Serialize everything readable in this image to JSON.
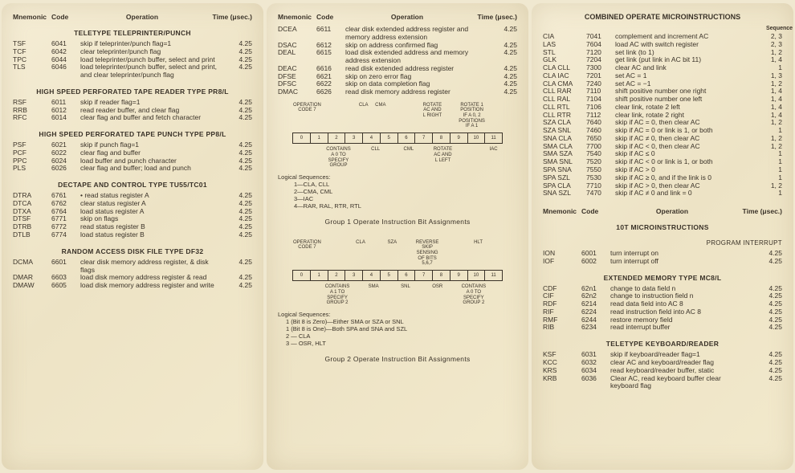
{
  "headers": {
    "mnemonic": "Mnemonic",
    "code": "Code",
    "operation": "Operation",
    "time": "Time (μsec.)",
    "sequence": "Sequence"
  },
  "p1": {
    "sec1": {
      "title": "TELETYPE TELEPRINTER/PUNCH",
      "rows": [
        {
          "m": "TSF",
          "c": "6041",
          "o": "skip if teleprinter/punch flag=1",
          "t": "4.25"
        },
        {
          "m": "TCF",
          "c": "6042",
          "o": "clear teleprinter/punch flag",
          "t": "4.25"
        },
        {
          "m": "TPC",
          "c": "6044",
          "o": "load teleprinter/punch buffer, select and print",
          "t": "4.25"
        },
        {
          "m": "TLS",
          "c": "6046",
          "o": "load teleprinter/punch buffer, select and print, and clear teleprinter/punch flag",
          "t": "4.25"
        }
      ]
    },
    "sec2": {
      "title": "HIGH SPEED PERFORATED TAPE READER TYPE PR8/L",
      "rows": [
        {
          "m": "RSF",
          "c": "6011",
          "o": "skip if reader flag=1",
          "t": "4.25"
        },
        {
          "m": "RRB",
          "c": "6012",
          "o": "read reader buffer, and clear flag",
          "t": "4.25"
        },
        {
          "m": "RFC",
          "c": "6014",
          "o": "clear flag and buffer and fetch character",
          "t": "4.25"
        }
      ]
    },
    "sec3": {
      "title": "HIGH SPEED PERFORATED TAPE PUNCH TYPE PP8/L",
      "rows": [
        {
          "m": "PSF",
          "c": "6021",
          "o": "skip if punch flag=1",
          "t": "4.25"
        },
        {
          "m": "PCF",
          "c": "6022",
          "o": "clear flag and buffer",
          "t": "4.25"
        },
        {
          "m": "PPC",
          "c": "6024",
          "o": "load buffer and punch character",
          "t": "4.25"
        },
        {
          "m": "PLS",
          "c": "6026",
          "o": "clear flag and buffer; load and punch",
          "t": "4.25"
        }
      ]
    },
    "sec4": {
      "title": "DECTAPE AND CONTROL TYPE TU55/TC01",
      "rows": [
        {
          "m": "DTRA",
          "c": "6761",
          "o": "• read status register A",
          "t": "4.25"
        },
        {
          "m": "DTCA",
          "c": "6762",
          "o": "clear status register A",
          "t": "4.25"
        },
        {
          "m": "DTXA",
          "c": "6764",
          "o": "load status register A",
          "t": "4.25"
        },
        {
          "m": "DTSF",
          "c": "6771",
          "o": "skip on flags",
          "t": "4.25"
        },
        {
          "m": "DTRB",
          "c": "6772",
          "o": "read status register B",
          "t": "4.25"
        },
        {
          "m": "DTLB",
          "c": "6774",
          "o": "load status register B",
          "t": "4.25"
        }
      ]
    },
    "sec5": {
      "title": "RANDOM ACCESS DISK FILE TYPE DF32",
      "rows": [
        {
          "m": "DCMA",
          "c": "6601",
          "o": "clear disk memory address register, & disk flags",
          "t": "4.25"
        },
        {
          "m": "DMAR",
          "c": "6603",
          "o": "load disk memory address register & read",
          "t": "4.25"
        },
        {
          "m": "DMAW",
          "c": "6605",
          "o": "load disk memory address register and write",
          "t": "4.25"
        }
      ]
    }
  },
  "p2": {
    "sec1": {
      "rows": [
        {
          "m": "DCEA",
          "c": "6611",
          "o": "clear disk extended address register and memory address extension",
          "t": "4.25"
        },
        {
          "m": "DSAC",
          "c": "6612",
          "o": "skip on address confirmed flag",
          "t": "4.25"
        },
        {
          "m": "DEAL",
          "c": "6615",
          "o": "load disk extended address and memory address extension",
          "t": "4.25"
        },
        {
          "m": "DEAC",
          "c": "6616",
          "o": "read disk extended address register",
          "t": "4.25"
        },
        {
          "m": "DFSE",
          "c": "6621",
          "o": "skip on zero error flag",
          "t": "4.25"
        },
        {
          "m": "DFSC",
          "c": "6622",
          "o": "skip on data completion flag",
          "t": "4.25"
        },
        {
          "m": "DMAC",
          "c": "6626",
          "o": "read disk memory address register",
          "t": "4.25"
        }
      ]
    },
    "g1": {
      "top": [
        "OPERATION CODE 7",
        "",
        "",
        "CLA",
        "CMA",
        "",
        "",
        "ROTATE AC AND L RIGHT",
        "",
        "ROTATE 1 POSITION IF A 0, 2 POSITIONS IF A 1",
        ""
      ],
      "bits": [
        "0",
        "1",
        "2",
        "3",
        "4",
        "5",
        "6",
        "7",
        "8",
        "9",
        "10",
        "11"
      ],
      "bot": [
        "",
        "",
        "CONTAINS A 0 TO SPECIFY GROUP",
        "",
        "CLL",
        "",
        "CML",
        "",
        "ROTATE AC AND L LEFT",
        "",
        "",
        "IAC"
      ],
      "title": "Group 1 Operate Instruction Bit Assignments",
      "seqlabel": "Logical Sequences:",
      "seq": [
        "1—CLA, CLL",
        "2—CMA, CML",
        "3—IAC",
        "4—RAR, RAL, RTR, RTL"
      ]
    },
    "g2": {
      "top": [
        "OPERATION CODE 7",
        "",
        "",
        "CLA",
        "",
        "SZA",
        "",
        "REVERSE SKIP SENSING OF BITS 5,6,7",
        "",
        "",
        "HLT",
        ""
      ],
      "bits": [
        "0",
        "1",
        "2",
        "3",
        "4",
        "5",
        "6",
        "7",
        "8",
        "9",
        "10",
        "11"
      ],
      "bot": [
        "",
        "",
        "CONTAINS A 1 TO SPECIFY GROUP 2",
        "",
        "SMA",
        "",
        "SNL",
        "",
        "OSR",
        "",
        "CONTAINS A 0 TO SPECIFY GROUP 2",
        ""
      ],
      "title": "Group 2 Operate Instruction Bit Assignments",
      "seqlabel": "Logical Sequences:",
      "seq": [
        "1 (Bit 8 is Zero)—Either SMA or SZA or SNL",
        "1 (Bit 8 is One)—Both SPA and SNA and SZL",
        "2 — CLA",
        "3 — OSR, HLT"
      ]
    }
  },
  "p3": {
    "title": "COMBINED OPERATE MICROINSTRUCTIONS",
    "rows": [
      {
        "m": "CIA",
        "c": "7041",
        "o": "complement and increment AC",
        "s": "2, 3"
      },
      {
        "m": "LAS",
        "c": "7604",
        "o": "load AC with switch register",
        "s": "2, 3"
      },
      {
        "m": "STL",
        "c": "7120",
        "o": "set link (to 1)",
        "s": "1, 2"
      },
      {
        "m": "GLK",
        "c": "7204",
        "o": "get link (put link in AC bit 11)",
        "s": "1, 4"
      },
      {
        "m": "CLA CLL",
        "c": "7300",
        "o": "clear AC and link",
        "s": "1"
      },
      {
        "m": "CLA IAC",
        "c": "7201",
        "o": "set AC = 1",
        "s": "1, 3"
      },
      {
        "m": "CLA CMA",
        "c": "7240",
        "o": "set AC = −1",
        "s": "1, 2"
      },
      {
        "m": "CLL RAR",
        "c": "7110",
        "o": "shift positive number one right",
        "s": "1, 4"
      },
      {
        "m": "CLL RAL",
        "c": "7104",
        "o": "shift positive number one left",
        "s": "1, 4"
      },
      {
        "m": "CLL RTL",
        "c": "7106",
        "o": "clear link, rotate 2 left",
        "s": "1, 4"
      },
      {
        "m": "CLL RTR",
        "c": "7112",
        "o": "clear link, rotate 2 right",
        "s": "1, 4"
      },
      {
        "m": "SZA CLA",
        "c": "7640",
        "o": "skip if AC = 0, then clear AC",
        "s": "1, 2"
      },
      {
        "m": "SZA SNL",
        "c": "7460",
        "o": "skip if AC = 0 or link is 1, or both",
        "s": "1"
      },
      {
        "m": "SNA CLA",
        "c": "7650",
        "o": "skip if AC ≠ 0, then clear AC",
        "s": "1, 2"
      },
      {
        "m": "SMA CLA",
        "c": "7700",
        "o": "skip if AC < 0, then clear AC",
        "s": "1, 2"
      },
      {
        "m": "SMA SZA",
        "c": "7540",
        "o": "skip if AC ≤ 0",
        "s": "1"
      },
      {
        "m": "SMA SNL",
        "c": "7520",
        "o": "skip if AC < 0 or link is 1, or both",
        "s": "1"
      },
      {
        "m": "SPA SNA",
        "c": "7550",
        "o": "skip if AC > 0",
        "s": "1"
      },
      {
        "m": "SPA SZL",
        "c": "7530",
        "o": "skip if AC ≥ 0, and if the link is 0",
        "s": "1"
      },
      {
        "m": "SPA CLA",
        "c": "7710",
        "o": "skip if AC > 0, then clear AC",
        "s": "1, 2"
      },
      {
        "m": "SNA SZL",
        "c": "7470",
        "o": "skip if AC ≠ 0 and link = 0",
        "s": "1"
      }
    ],
    "iot": {
      "title": "10T MICROINSTRUCTIONS"
    },
    "pi": {
      "title": "PROGRAM INTERRUPT",
      "rows": [
        {
          "m": "ION",
          "c": "6001",
          "o": "turn interrupt on",
          "t": "4.25"
        },
        {
          "m": "IOF",
          "c": "6002",
          "o": "turn interrupt off",
          "t": "4.25"
        }
      ]
    },
    "em": {
      "title": "EXTENDED MEMORY TYPE MC8/L",
      "rows": [
        {
          "m": "CDF",
          "c": "62n1",
          "o": "change to data field n",
          "t": "4.25"
        },
        {
          "m": "CIF",
          "c": "62n2",
          "o": "change to instruction field n",
          "t": "4.25"
        },
        {
          "m": "RDF",
          "c": "6214",
          "o": "read data field into AC 8",
          "t": "4.25"
        },
        {
          "m": "RIF",
          "c": "6224",
          "o": "read instruction field into AC 8",
          "t": "4.25"
        },
        {
          "m": "RMF",
          "c": "6244",
          "o": "restore memory field",
          "t": "4.25"
        },
        {
          "m": "RIB",
          "c": "6234",
          "o": "read interrupt buffer",
          "t": "4.25"
        }
      ]
    },
    "tk": {
      "title": "TELETYPE KEYBOARD/READER",
      "rows": [
        {
          "m": "KSF",
          "c": "6031",
          "o": "skip if keyboard/reader flag=1",
          "t": "4.25"
        },
        {
          "m": "KCC",
          "c": "6032",
          "o": "clear AC and keyboard/reader flag",
          "t": "4.25"
        },
        {
          "m": "KRS",
          "c": "6034",
          "o": "read keyboard/reader buffer, static",
          "t": "4.25"
        },
        {
          "m": "KRB",
          "c": "6036",
          "o": "Clear AC, read keyboard buffer clear keyboard flag",
          "t": "4.25"
        }
      ]
    }
  }
}
